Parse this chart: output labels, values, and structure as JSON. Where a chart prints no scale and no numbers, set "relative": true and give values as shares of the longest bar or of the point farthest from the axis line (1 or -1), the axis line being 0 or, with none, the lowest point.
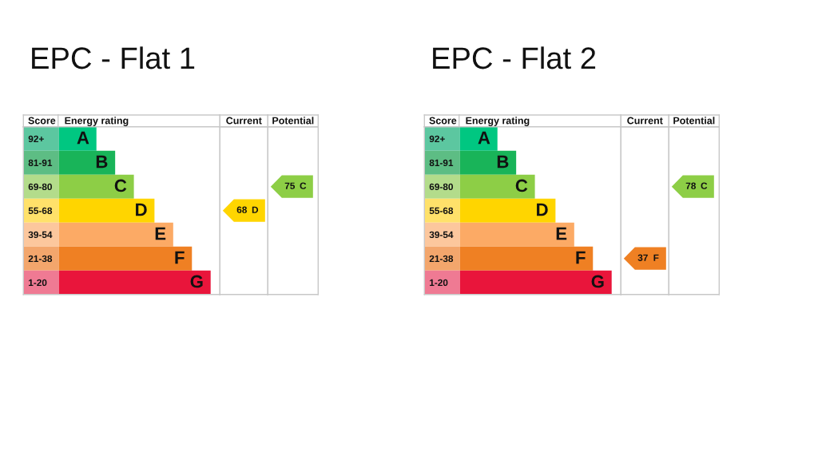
{
  "chart_data": [
    {
      "type": "bar",
      "title": "EPC - Flat 1",
      "orientation": "horizontal",
      "stacked": true,
      "relative": true,
      "tick_labels": "y",
      "ylabel": "Score",
      "xlabel": "Energy rating",
      "categories": [
        "92+",
        "81-91",
        "69-80",
        "55-68",
        "39-54",
        "21-38",
        "1-20"
      ],
      "series": [
        {
          "colors": [
            "#5cc7a0",
            "#5dbd84",
            "#b3dc8b",
            "#ffe16a",
            "#fcc79d",
            "#f3a66c",
            "#ef7a93"
          ],
          "values": [
            0.19,
            0.19,
            0.19,
            0.19,
            0.19,
            0.19,
            0.19
          ]
        },
        {
          "colors": [
            "#00c781",
            "#19b459",
            "#8dce46",
            "#ffd500",
            "#fcaa65",
            "#ef8023",
            "#e9153b"
          ],
          "values": [
            0.2,
            0.3,
            0.4,
            0.51,
            0.61,
            0.71,
            0.81
          ]
        }
      ],
      "annotations": [
        {
          "text": "A",
          "x": 0.39,
          "y": "92+"
        },
        {
          "text": "B",
          "x": 0.49,
          "y": "81-91"
        },
        {
          "text": "C",
          "x": 0.59,
          "y": "69-80"
        },
        {
          "text": "D",
          "x": 0.7,
          "y": "55-68"
        },
        {
          "text": "E",
          "x": 0.8,
          "y": "39-54"
        },
        {
          "text": "F",
          "x": 0.9,
          "y": "21-38"
        },
        {
          "text": "G",
          "x": 1.0,
          "y": "1-20"
        }
      ]
    },
    {
      "type": "other",
      "title": "Current",
      "data_labels": true,
      "categories": [
        null,
        null,
        null,
        "D",
        null,
        null,
        null
      ],
      "values": [
        null,
        null,
        null,
        68,
        null,
        null,
        null
      ],
      "colors": [
        null,
        null,
        null,
        "#ffd500",
        null,
        null,
        null
      ]
    },
    {
      "type": "other",
      "title": "Potential",
      "data_labels": true,
      "categories": [
        null,
        null,
        "C",
        null,
        null,
        null,
        null
      ],
      "values": [
        null,
        null,
        75,
        null,
        null,
        null,
        null
      ],
      "colors": [
        null,
        null,
        "#8dce46",
        null,
        null,
        null,
        null
      ]
    },
    {
      "type": "bar",
      "title": "EPC - Flat 2",
      "orientation": "horizontal",
      "stacked": true,
      "relative": true,
      "tick_labels": "y",
      "ylabel": "Score",
      "xlabel": "Energy rating",
      "categories": [
        "92+",
        "81-91",
        "69-80",
        "55-68",
        "39-54",
        "21-38",
        "1-20"
      ],
      "series": [
        {
          "colors": [
            "#5cc7a0",
            "#5dbd84",
            "#b3dc8b",
            "#ffe16a",
            "#fcc79d",
            "#f3a66c",
            "#ef7a93"
          ],
          "values": [
            0.19,
            0.19,
            0.19,
            0.19,
            0.19,
            0.19,
            0.19
          ]
        },
        {
          "colors": [
            "#00c781",
            "#19b459",
            "#8dce46",
            "#ffd500",
            "#fcaa65",
            "#ef8023",
            "#e9153b"
          ],
          "values": [
            0.2,
            0.3,
            0.4,
            0.51,
            0.61,
            0.71,
            0.81
          ]
        }
      ],
      "annotations": [
        {
          "text": "A",
          "x": 0.39,
          "y": "92+"
        },
        {
          "text": "B",
          "x": 0.49,
          "y": "81-91"
        },
        {
          "text": "C",
          "x": 0.59,
          "y": "69-80"
        },
        {
          "text": "D",
          "x": 0.7,
          "y": "55-68"
        },
        {
          "text": "E",
          "x": 0.8,
          "y": "39-54"
        },
        {
          "text": "F",
          "x": 0.9,
          "y": "21-38"
        },
        {
          "text": "G",
          "x": 1.0,
          "y": "1-20"
        }
      ]
    },
    {
      "type": "other",
      "title": "Current",
      "data_labels": true,
      "categories": [
        null,
        null,
        null,
        null,
        null,
        "F",
        null
      ],
      "values": [
        null,
        null,
        null,
        null,
        null,
        37,
        null
      ],
      "colors": [
        null,
        null,
        null,
        null,
        null,
        "#ef8023",
        null
      ]
    },
    {
      "type": "other",
      "title": "Potential",
      "data_labels": true,
      "categories": [
        null,
        null,
        "C",
        null,
        null,
        null,
        null
      ],
      "values": [
        null,
        null,
        78,
        null,
        null,
        null,
        null
      ],
      "colors": [
        null,
        null,
        "#8dce46",
        null,
        null,
        null,
        null
      ]
    }
  ]
}
